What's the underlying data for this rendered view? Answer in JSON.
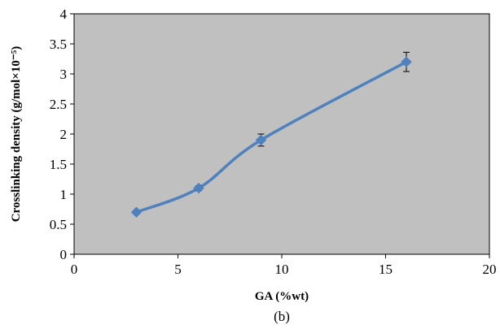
{
  "chart_data": {
    "type": "line",
    "caption": "(b)",
    "xlabel": "GA (%wt)",
    "ylabel": "Crosslinking density (g/mol×10⁻⁵)",
    "xlim": [
      0,
      20
    ],
    "ylim": [
      0,
      4
    ],
    "x_ticks": [
      0,
      5,
      10,
      15,
      20
    ],
    "y_ticks": [
      0,
      0.5,
      1,
      1.5,
      2,
      2.5,
      3,
      3.5,
      4
    ],
    "x_tick_labels": [
      "0",
      "5",
      "10",
      "15",
      "20"
    ],
    "y_tick_labels": [
      "0",
      "0.5",
      "1",
      "1.5",
      "2",
      "2.5",
      "3",
      "3.5",
      "4"
    ],
    "grid": false,
    "plot_background": "#c0c0c0",
    "series": [
      {
        "color": "#4f81bd",
        "marker": "diamond",
        "smooth": true,
        "x": [
          3,
          6,
          9,
          16
        ],
        "y": [
          0.7,
          1.1,
          1.9,
          3.2
        ],
        "error": [
          0,
          0.04,
          0.1,
          0.16
        ]
      }
    ]
  }
}
